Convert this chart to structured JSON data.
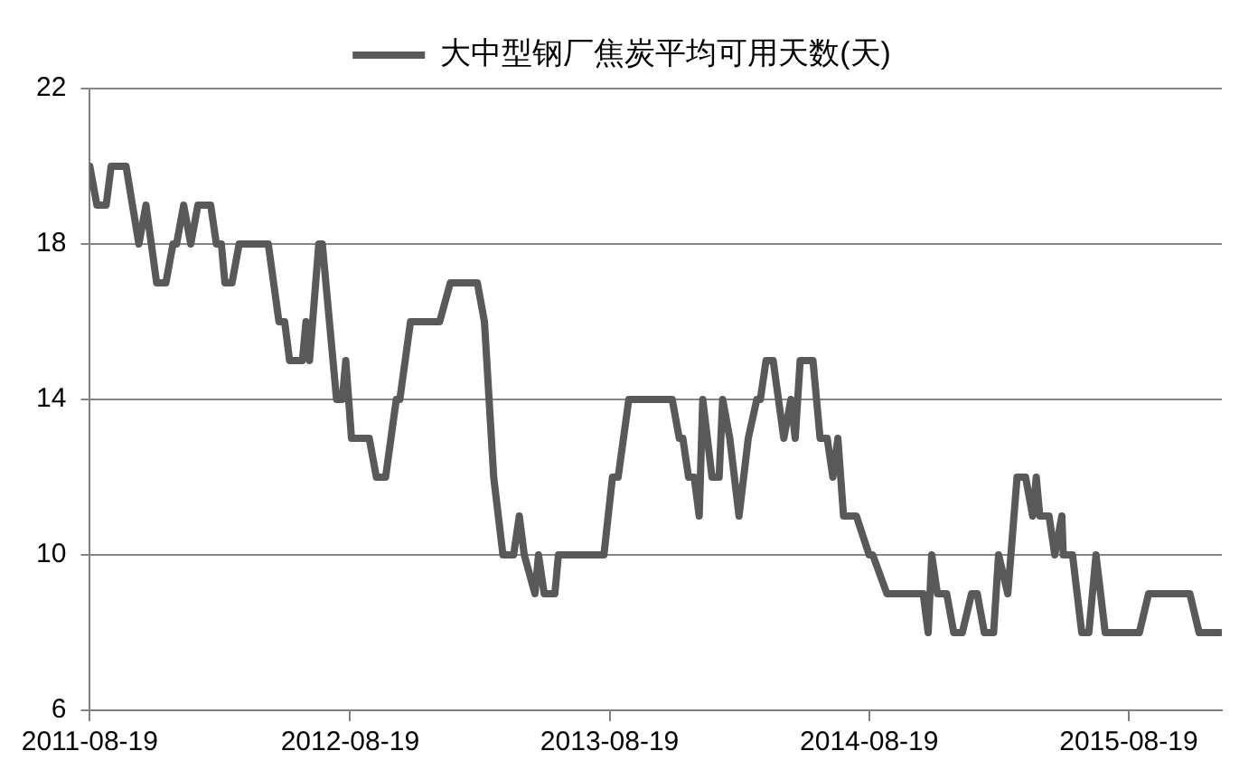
{
  "chart_data": {
    "type": "line",
    "legend": "top",
    "grid": "y",
    "marker": "none",
    "line_style": "solid",
    "xlim": [
      "2011-08-19",
      "2015-12-28"
    ],
    "xticks": [
      "2011-08-19",
      "2012-08-19",
      "2013-08-19",
      "2014-08-19",
      "2015-08-19"
    ],
    "ylim": [
      6,
      22
    ],
    "yticks": [
      6,
      10,
      14,
      18,
      22
    ],
    "series": [
      {
        "name": "大中型钢厂焦炭平均可用天数(天)",
        "color": "#595959",
        "x": [
          "2011-08-19",
          "2011-08-29",
          "2011-09-11",
          "2011-09-18",
          "2011-10-09",
          "2011-10-27",
          "2011-11-06",
          "2011-11-21",
          "2011-12-04",
          "2011-12-14",
          "2011-12-19",
          "2011-12-29",
          "2012-01-08",
          "2012-01-18",
          "2012-02-05",
          "2012-02-13",
          "2012-02-20",
          "2012-02-25",
          "2012-03-06",
          "2012-03-16",
          "2012-04-26",
          "2012-05-11",
          "2012-05-19",
          "2012-05-26",
          "2012-06-13",
          "2012-06-18",
          "2012-06-23",
          "2012-07-06",
          "2012-07-11",
          "2012-07-31",
          "2012-08-08",
          "2012-08-13",
          "2012-08-21",
          "2012-09-15",
          "2012-09-25",
          "2012-10-08",
          "2012-10-23",
          "2012-10-28",
          "2012-11-12",
          "2012-12-23",
          "2013-01-07",
          "2013-02-14",
          "2013-02-24",
          "2013-03-09",
          "2013-03-22",
          "2013-04-06",
          "2013-04-14",
          "2013-04-21",
          "2013-05-06",
          "2013-05-11",
          "2013-05-19",
          "2013-06-03",
          "2013-06-08",
          "2013-08-11",
          "2013-08-23",
          "2013-08-31",
          "2013-09-15",
          "2013-11-15",
          "2013-11-25",
          "2013-11-30",
          "2013-12-08",
          "2013-12-16",
          "2013-12-23",
          "2013-12-28",
          "2014-01-10",
          "2014-01-20",
          "2014-01-25",
          "2014-02-04",
          "2014-02-17",
          "2014-03-02",
          "2014-03-14",
          "2014-03-19",
          "2014-03-27",
          "2014-04-06",
          "2014-04-21",
          "2014-05-01",
          "2014-05-07",
          "2014-05-14",
          "2014-06-01",
          "2014-06-11",
          "2014-06-21",
          "2014-06-29",
          "2014-07-06",
          "2014-07-14",
          "2014-08-01",
          "2014-08-19",
          "2014-08-24",
          "2014-09-13",
          "2014-09-21",
          "2014-11-03",
          "2014-11-10",
          "2014-11-15",
          "2014-11-23",
          "2014-12-06",
          "2014-12-16",
          "2014-12-28",
          "2015-01-10",
          "2015-01-18",
          "2015-01-28",
          "2015-02-10",
          "2015-02-17",
          "2015-03-02",
          "2015-03-15",
          "2015-03-27",
          "2015-04-06",
          "2015-04-11",
          "2015-04-16",
          "2015-04-29",
          "2015-05-07",
          "2015-05-17",
          "2015-05-19",
          "2015-06-01",
          "2015-06-14",
          "2015-06-24",
          "2015-07-04",
          "2015-07-17",
          "2015-09-03",
          "2015-09-16",
          "2015-11-13",
          "2015-11-26",
          "2015-12-26"
        ],
        "values": [
          20,
          19,
          19,
          20,
          20,
          18,
          19,
          17,
          17,
          18,
          18,
          19,
          18,
          19,
          19,
          18,
          18,
          17,
          17,
          18,
          18,
          16,
          16,
          15,
          15,
          16,
          15,
          18,
          18,
          14,
          14,
          15,
          13,
          13,
          12,
          12,
          14,
          14,
          16,
          16,
          17,
          17,
          16,
          12,
          10,
          10,
          11,
          10,
          9,
          10,
          9,
          9,
          10,
          10,
          12,
          12,
          14,
          14,
          13,
          13,
          12,
          12,
          11,
          14,
          12,
          12,
          14,
          13,
          11,
          13,
          14,
          14,
          15,
          15,
          13,
          14,
          13,
          15,
          15,
          13,
          13,
          12,
          13,
          11,
          11,
          10,
          10,
          9,
          9,
          9,
          8,
          10,
          9,
          9,
          8,
          8,
          9,
          9,
          8,
          8,
          10,
          9,
          12,
          12,
          11,
          12,
          11,
          11,
          10,
          11,
          10,
          10,
          8,
          8,
          10,
          8,
          8,
          9,
          9,
          8,
          8
        ]
      }
    ]
  }
}
